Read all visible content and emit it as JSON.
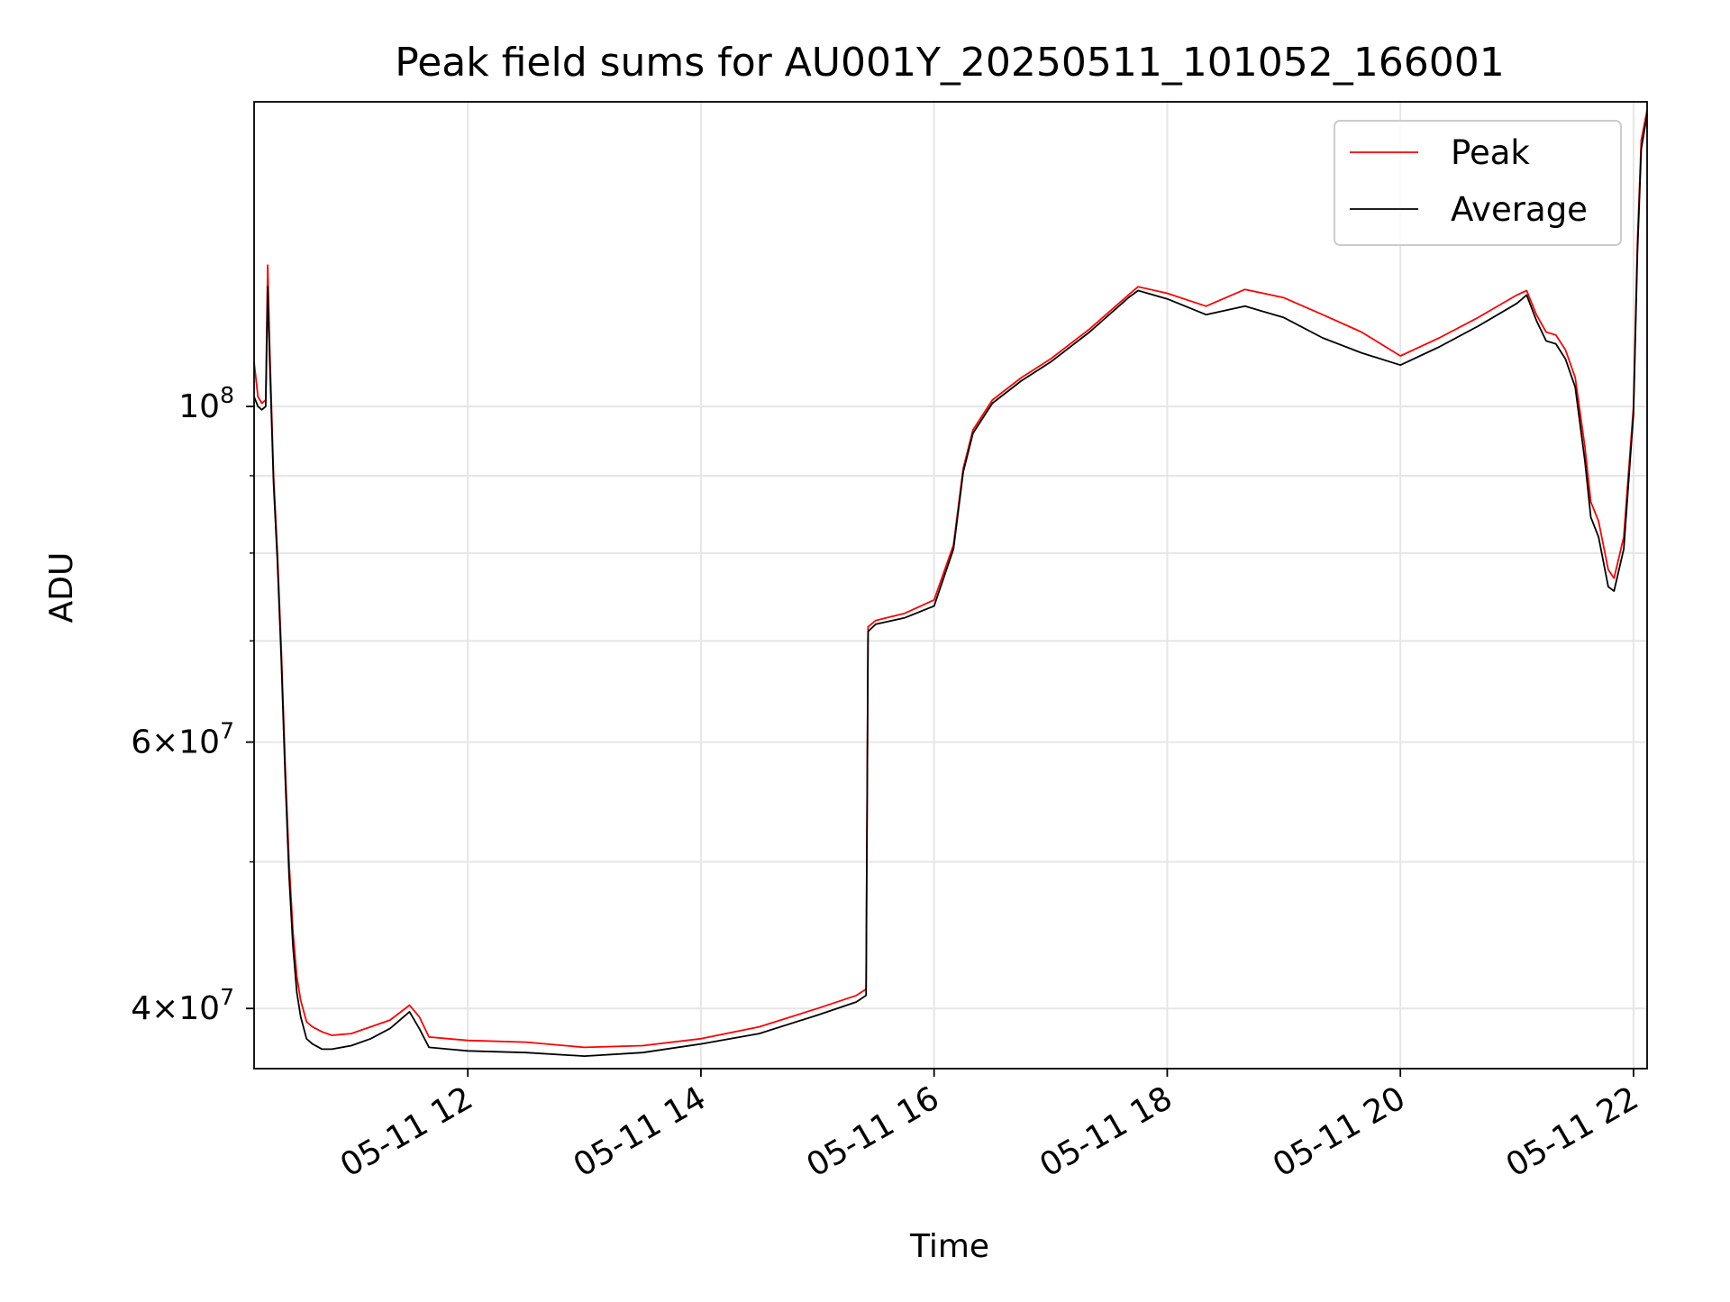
{
  "chart_data": {
    "type": "line",
    "title": "Peak field sums for AU001Y_20250511_101052_166001",
    "xlabel": "Time",
    "ylabel": "ADU",
    "yscale": "log",
    "grid": true,
    "legend_position": "upper-right",
    "xlim": [
      "2025-05-11 10:10",
      "2025-05-11 22:07"
    ],
    "ylim": [
      36500000,
      159000000
    ],
    "x_ticks": [
      {
        "t": "2025-05-11 12:00",
        "label": "05-11 12"
      },
      {
        "t": "2025-05-11 14:00",
        "label": "05-11 14"
      },
      {
        "t": "2025-05-11 16:00",
        "label": "05-11 16"
      },
      {
        "t": "2025-05-11 18:00",
        "label": "05-11 18"
      },
      {
        "t": "2025-05-11 20:00",
        "label": "05-11 20"
      },
      {
        "t": "2025-05-11 22:00",
        "label": "05-11 22"
      }
    ],
    "y_ticks_major": [
      {
        "value": 40000000,
        "mantissa": "4",
        "base": "10",
        "exp": "7"
      },
      {
        "value": 60000000,
        "mantissa": "6",
        "base": "10",
        "exp": "7"
      },
      {
        "value": 100000000,
        "mantissa": "",
        "base": "10",
        "exp": "8"
      }
    ],
    "y_ticks_minor": [
      50000000,
      70000000,
      80000000,
      90000000
    ],
    "series": [
      {
        "name": "Peak",
        "color": "#ff0000",
        "x": [
          "2025-05-11 10:10",
          "2025-05-11 10:12",
          "2025-05-11 10:14",
          "2025-05-11 10:16",
          "2025-05-11 10:17",
          "2025-05-11 10:18",
          "2025-05-11 10:20",
          "2025-05-11 10:22",
          "2025-05-11 10:24",
          "2025-05-11 10:26",
          "2025-05-11 10:28",
          "2025-05-11 10:30",
          "2025-05-11 10:32",
          "2025-05-11 10:34",
          "2025-05-11 10:37",
          "2025-05-11 10:40",
          "2025-05-11 10:45",
          "2025-05-11 10:50",
          "2025-05-11 11:00",
          "2025-05-11 11:10",
          "2025-05-11 11:20",
          "2025-05-11 11:30",
          "2025-05-11 11:35",
          "2025-05-11 11:40",
          "2025-05-11 11:50",
          "2025-05-11 12:00",
          "2025-05-11 12:30",
          "2025-05-11 13:00",
          "2025-05-11 13:30",
          "2025-05-11 14:00",
          "2025-05-11 14:30",
          "2025-05-11 15:00",
          "2025-05-11 15:20",
          "2025-05-11 15:25",
          "2025-05-11 15:26",
          "2025-05-11 15:30",
          "2025-05-11 15:45",
          "2025-05-11 16:00",
          "2025-05-11 16:10",
          "2025-05-11 16:15",
          "2025-05-11 16:20",
          "2025-05-11 16:30",
          "2025-05-11 16:45",
          "2025-05-11 17:00",
          "2025-05-11 17:20",
          "2025-05-11 17:40",
          "2025-05-11 17:45",
          "2025-05-11 18:00",
          "2025-05-11 18:20",
          "2025-05-11 18:40",
          "2025-05-11 19:00",
          "2025-05-11 19:20",
          "2025-05-11 19:40",
          "2025-05-11 20:00",
          "2025-05-11 20:20",
          "2025-05-11 20:40",
          "2025-05-11 21:00",
          "2025-05-11 21:05",
          "2025-05-11 21:10",
          "2025-05-11 21:15",
          "2025-05-11 21:20",
          "2025-05-11 21:25",
          "2025-05-11 21:30",
          "2025-05-11 21:35",
          "2025-05-11 21:38",
          "2025-05-11 21:42",
          "2025-05-11 21:47",
          "2025-05-11 21:50",
          "2025-05-11 21:55",
          "2025-05-11 22:00",
          "2025-05-11 22:02",
          "2025-05-11 22:04",
          "2025-05-11 22:07"
        ],
        "y": [
          107000000,
          101500000,
          100500000,
          101000000,
          124000000,
          110000000,
          90000000,
          80000000,
          69000000,
          58000000,
          50000000,
          45000000,
          42000000,
          40500000,
          39200000,
          38900000,
          38600000,
          38400000,
          38500000,
          38900000,
          39300000,
          40200000,
          39500000,
          38300000,
          38200000,
          38100000,
          38000000,
          37700000,
          37800000,
          38200000,
          38900000,
          40000000,
          40800000,
          41200000,
          71500000,
          72200000,
          73000000,
          74500000,
          81000000,
          91000000,
          96500000,
          101000000,
          104500000,
          107500000,
          112500000,
          118500000,
          120000000,
          118800000,
          116500000,
          119500000,
          118000000,
          115000000,
          112000000,
          108000000,
          111000000,
          114500000,
          118500000,
          119300000,
          115000000,
          112000000,
          111500000,
          109000000,
          104500000,
          94000000,
          86500000,
          84000000,
          78000000,
          77000000,
          82000000,
          100000000,
          128000000,
          150000000,
          157000000
        ]
      },
      {
        "name": "Average",
        "color": "#000000",
        "x": [
          "2025-05-11 10:10",
          "2025-05-11 10:12",
          "2025-05-11 10:14",
          "2025-05-11 10:16",
          "2025-05-11 10:17",
          "2025-05-11 10:18",
          "2025-05-11 10:20",
          "2025-05-11 10:22",
          "2025-05-11 10:24",
          "2025-05-11 10:26",
          "2025-05-11 10:28",
          "2025-05-11 10:30",
          "2025-05-11 10:32",
          "2025-05-11 10:34",
          "2025-05-11 10:37",
          "2025-05-11 10:40",
          "2025-05-11 10:45",
          "2025-05-11 10:50",
          "2025-05-11 11:00",
          "2025-05-11 11:10",
          "2025-05-11 11:20",
          "2025-05-11 11:30",
          "2025-05-11 11:35",
          "2025-05-11 11:40",
          "2025-05-11 11:50",
          "2025-05-11 12:00",
          "2025-05-11 12:30",
          "2025-05-11 13:00",
          "2025-05-11 13:30",
          "2025-05-11 14:00",
          "2025-05-11 14:30",
          "2025-05-11 15:00",
          "2025-05-11 15:20",
          "2025-05-11 15:25",
          "2025-05-11 15:26",
          "2025-05-11 15:30",
          "2025-05-11 15:45",
          "2025-05-11 16:00",
          "2025-05-11 16:10",
          "2025-05-11 16:15",
          "2025-05-11 16:20",
          "2025-05-11 16:30",
          "2025-05-11 16:45",
          "2025-05-11 17:00",
          "2025-05-11 17:20",
          "2025-05-11 17:40",
          "2025-05-11 17:45",
          "2025-05-11 18:00",
          "2025-05-11 18:20",
          "2025-05-11 18:40",
          "2025-05-11 19:00",
          "2025-05-11 19:20",
          "2025-05-11 19:40",
          "2025-05-11 20:00",
          "2025-05-11 20:20",
          "2025-05-11 20:40",
          "2025-05-11 21:00",
          "2025-05-11 21:05",
          "2025-05-11 21:10",
          "2025-05-11 21:15",
          "2025-05-11 21:20",
          "2025-05-11 21:25",
          "2025-05-11 21:30",
          "2025-05-11 21:35",
          "2025-05-11 21:38",
          "2025-05-11 21:42",
          "2025-05-11 21:47",
          "2025-05-11 21:50",
          "2025-05-11 21:55",
          "2025-05-11 22:00",
          "2025-05-11 22:02",
          "2025-05-11 22:04",
          "2025-05-11 22:07"
        ],
        "y": [
          101500000,
          100000000,
          99500000,
          100000000,
          120000000,
          108000000,
          89000000,
          79000000,
          68000000,
          57000000,
          49000000,
          44000000,
          41000000,
          39500000,
          38200000,
          37900000,
          37600000,
          37600000,
          37800000,
          38200000,
          38800000,
          39800000,
          38800000,
          37700000,
          37600000,
          37500000,
          37400000,
          37200000,
          37400000,
          37900000,
          38500000,
          39600000,
          40400000,
          40800000,
          71000000,
          71800000,
          72500000,
          73800000,
          80500000,
          90500000,
          96000000,
          100500000,
          104000000,
          107000000,
          112000000,
          118000000,
          119300000,
          117800000,
          115000000,
          116500000,
          114500000,
          111000000,
          108500000,
          106500000,
          109500000,
          113000000,
          117000000,
          118500000,
          114000000,
          110500000,
          110000000,
          107500000,
          103000000,
          92000000,
          84500000,
          82000000,
          76000000,
          75500000,
          80500000,
          99000000,
          126000000,
          148000000,
          156000000
        ]
      }
    ]
  }
}
